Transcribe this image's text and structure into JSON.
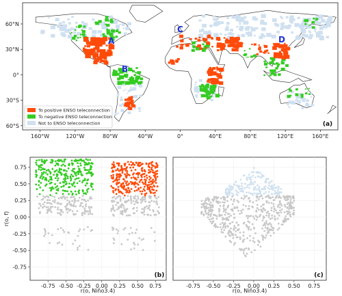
{
  "colors": {
    "positive": "#ff4b0a",
    "negative": "#33cc22",
    "none": "#cfe0f0",
    "gray": "#c8c8c8",
    "land": "#ffffff",
    "border": "#222222"
  },
  "map": {
    "panel_label": "(a)",
    "lat_ticks": [
      "60°N",
      "30°N",
      "0°",
      "30°S",
      "60°S"
    ],
    "lon_ticks": [
      "160°W",
      "120°W",
      "80°W",
      "40°W",
      "0°",
      "40°E",
      "80°E",
      "120°E",
      "160°E"
    ],
    "regions": [
      "A",
      "B",
      "C",
      "D"
    ],
    "legend": [
      {
        "label": "To positive ENSO teleconnection",
        "color_key": "positive"
      },
      {
        "label": "To negative ENSO teleconnection",
        "color_key": "negative"
      },
      {
        "label": "Not to ENSO teleconnection",
        "color_key": "none"
      }
    ]
  },
  "chart_data": [
    {
      "type": "scatter",
      "panel_label": "(b)",
      "xlabel": "r(o, Niño3.4)",
      "ylabel": "r(o, f)",
      "xlim": [
        -1.0,
        0.9
      ],
      "ylim": [
        -0.95,
        0.9
      ],
      "xticks": [
        "-0.75",
        "-0.50",
        "-0.25",
        "0.00",
        "0.25",
        "0.50",
        "0.75"
      ],
      "yticks": [
        "-0.75",
        "-0.50",
        "-0.25",
        "0.00",
        "0.25",
        "0.50",
        "0.75"
      ],
      "threshold_r_of": 0.32,
      "clusters": [
        {
          "category": "negative ENSO",
          "x_range": [
            -0.92,
            -0.12
          ],
          "y_range": [
            0.32,
            0.87
          ],
          "approx_points": 1500
        },
        {
          "category": "positive ENSO",
          "x_range": [
            0.13,
            0.78
          ],
          "y_range": [
            0.32,
            0.83
          ],
          "approx_points": 1500
        },
        {
          "category": "not significant",
          "x_range": [
            -0.9,
            -0.12
          ],
          "y_range": [
            0.02,
            0.32
          ],
          "approx_points": 700
        },
        {
          "category": "not significant",
          "x_range": [
            0.13,
            0.8
          ],
          "y_range": [
            0.02,
            0.32
          ],
          "approx_points": 700
        },
        {
          "category": "not significant",
          "x_range": [
            -0.9,
            -0.1
          ],
          "y_range": [
            -0.5,
            -0.15
          ],
          "approx_points": 150
        },
        {
          "category": "not significant",
          "x_range": [
            0.12,
            0.75
          ],
          "y_range": [
            -0.5,
            -0.15
          ],
          "approx_points": 150
        }
      ],
      "grid": true
    },
    {
      "type": "scatter",
      "panel_label": "(c)",
      "xlabel": "r(o, Niño3.4)",
      "ylabel": "",
      "xlim": [
        -1.0,
        0.9
      ],
      "ylim": [
        -0.95,
        0.9
      ],
      "xticks": [
        "-0.75",
        "-0.50",
        "-0.25",
        "0.00",
        "0.25",
        "0.50",
        "0.75"
      ],
      "yticks": [],
      "threshold_r_of": 0.32,
      "clusters": [
        {
          "category": "not ENSO (significant)",
          "x_range": [
            -0.35,
            0.35
          ],
          "y_range": [
            0.32,
            0.75
          ],
          "approx_points": 900
        },
        {
          "category": "not significant",
          "x_range": [
            -0.65,
            0.5
          ],
          "y_range": [
            -0.65,
            0.32
          ],
          "approx_points": 2500
        }
      ],
      "grid": true
    }
  ]
}
